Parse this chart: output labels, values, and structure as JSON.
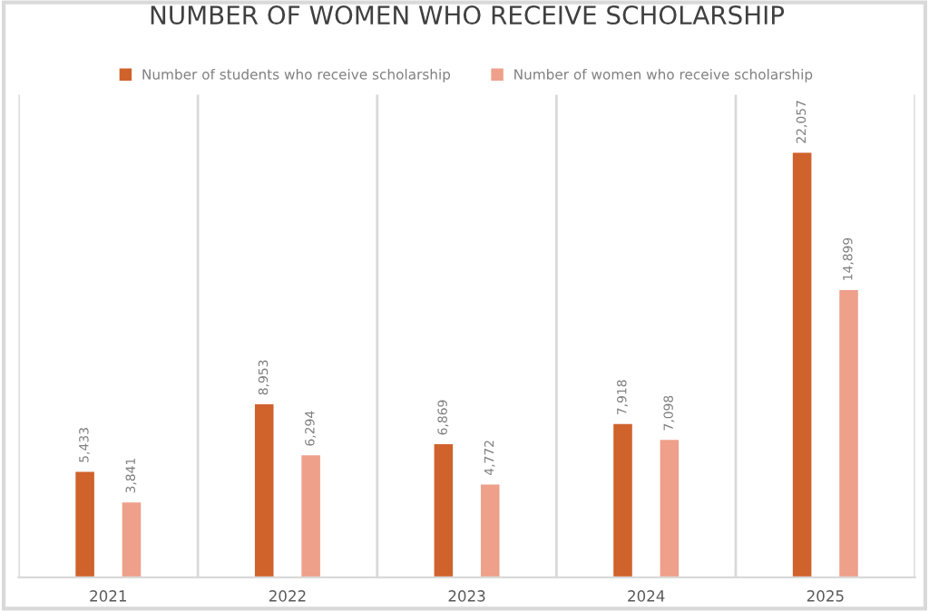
{
  "chart_data": {
    "type": "bar",
    "title": "NUMBER OF WOMEN WHO RECEIVE SCHOLARSHIP",
    "categories": [
      "2021",
      "2022",
      "2023",
      "2024",
      "2025"
    ],
    "series": [
      {
        "name": "Number of students who receive scholarship",
        "color": "#d0622c",
        "values": [
          5433,
          8953,
          6869,
          7918,
          22057
        ],
        "value_labels": [
          "5,433",
          "8,953",
          "6,869",
          "7,918",
          "22,057"
        ]
      },
      {
        "name": "Number of women who receive scholarship",
        "color": "#eea08a",
        "values": [
          3841,
          6294,
          4772,
          7098,
          14899
        ],
        "value_labels": [
          "3,841",
          "6,294",
          "4,772",
          "7,098",
          "14,899"
        ]
      }
    ],
    "grid": "x",
    "legend": "top"
  }
}
